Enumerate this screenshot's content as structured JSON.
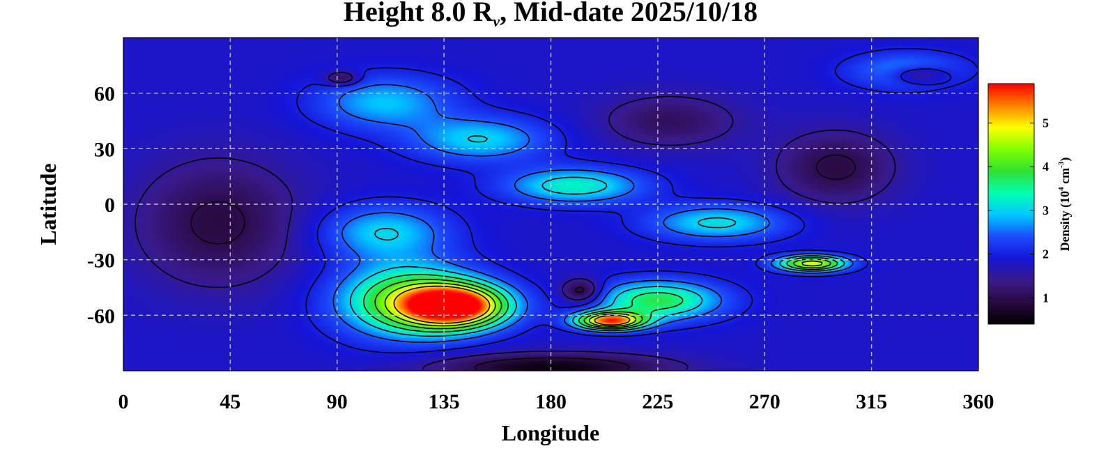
{
  "chart_data": {
    "type": "heatmap",
    "title": {
      "prefix": "Height 8.0 R",
      "subscript": "ν",
      "suffix": ", Mid-date 2025/10/18"
    },
    "xlabel": "Longitude",
    "ylabel": "Latitude",
    "xlim": [
      0,
      360
    ],
    "ylim": [
      -90,
      90
    ],
    "xticks": [
      0,
      45,
      90,
      135,
      180,
      225,
      270,
      315,
      360
    ],
    "yticks": [
      60,
      30,
      0,
      -30,
      -60
    ],
    "grid": true,
    "colorbar": {
      "label": {
        "prefix": "Density (10",
        "exp1": "4",
        "mid": " cm",
        "exp2": "-3",
        "suffix": ")"
      },
      "ticks": [
        1,
        2,
        3,
        4,
        5
      ],
      "range": [
        0.4,
        5.9
      ],
      "colormap": [
        "#000000",
        "#2a0a40",
        "#3a1a8a",
        "#1515d8",
        "#1c4cff",
        "#00c8ff",
        "#00ffb0",
        "#30e030",
        "#80ff00",
        "#ffff00",
        "#ff8000",
        "#ff0000"
      ]
    },
    "features": [
      {
        "lon": 140,
        "lat": -55,
        "value": 5.9,
        "width_deg": 45,
        "height_deg": 24
      },
      {
        "lon": 120,
        "lat": -52,
        "value": 4.2,
        "width_deg": 60,
        "height_deg": 40
      },
      {
        "lon": 205,
        "lat": -63,
        "value": 5.5,
        "width_deg": 30,
        "height_deg": 10
      },
      {
        "lon": 225,
        "lat": -52,
        "value": 3.8,
        "width_deg": 55,
        "height_deg": 22
      },
      {
        "lon": 290,
        "lat": -32,
        "value": 4.8,
        "width_deg": 30,
        "height_deg": 9
      },
      {
        "lon": 110,
        "lat": -15,
        "value": 3.0,
        "width_deg": 55,
        "height_deg": 30
      },
      {
        "lon": 190,
        "lat": 10,
        "value": 3.3,
        "width_deg": 60,
        "height_deg": 20
      },
      {
        "lon": 250,
        "lat": -10,
        "value": 3.1,
        "width_deg": 60,
        "height_deg": 20
      },
      {
        "lon": 110,
        "lat": 55,
        "value": 2.9,
        "width_deg": 60,
        "height_deg": 30
      },
      {
        "lon": 150,
        "lat": 35,
        "value": 3.0,
        "width_deg": 60,
        "height_deg": 25
      },
      {
        "lon": 330,
        "lat": 72,
        "value": 2.8,
        "width_deg": 50,
        "height_deg": 20
      },
      {
        "lon": 40,
        "lat": -10,
        "value": 0.9,
        "width_deg": 70,
        "height_deg": 70
      },
      {
        "lon": 300,
        "lat": 20,
        "value": 0.9,
        "width_deg": 50,
        "height_deg": 40
      },
      {
        "lon": 230,
        "lat": 45,
        "value": 1.1,
        "width_deg": 60,
        "height_deg": 30
      },
      {
        "lon": 193,
        "lat": -47,
        "value": 0.6,
        "width_deg": 18,
        "height_deg": 14
      },
      {
        "lon": 180,
        "lat": -88,
        "value": 0.5,
        "width_deg": 100,
        "height_deg": 15
      },
      {
        "lon": 335,
        "lat": 70,
        "value": 0.7,
        "width_deg": 25,
        "height_deg": 10
      },
      {
        "lon": 92,
        "lat": 68,
        "value": 0.8,
        "width_deg": 15,
        "height_deg": 8
      }
    ],
    "background_value": 1.8
  }
}
